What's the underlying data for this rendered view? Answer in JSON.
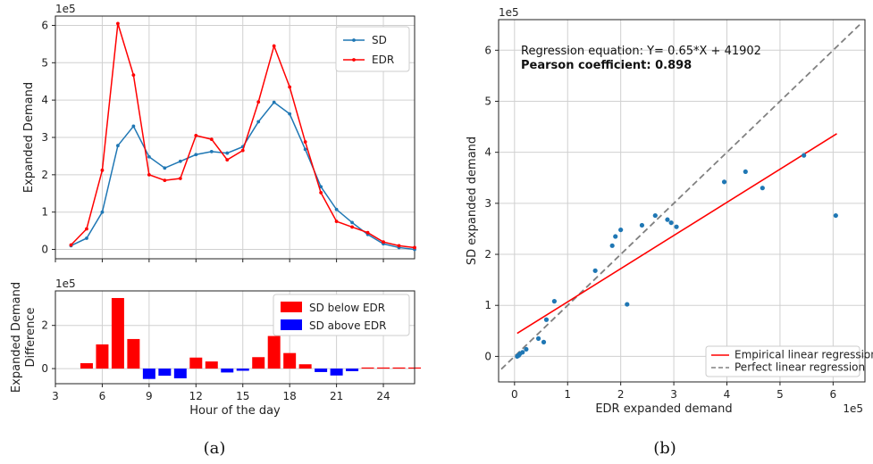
{
  "chart_data": [
    {
      "panel": "a-top",
      "type": "line",
      "ylabel": "Expanded Demand",
      "y_offset_text": "1e5",
      "x": [
        4,
        5,
        6,
        7,
        8,
        9,
        10,
        11,
        12,
        13,
        14,
        15,
        16,
        17,
        18,
        19,
        20,
        21,
        22,
        23,
        24,
        25,
        26
      ],
      "xlim": [
        3,
        26
      ],
      "ylim": [
        -0.25,
        6.25
      ],
      "yticks": [
        0,
        1,
        2,
        3,
        4,
        5,
        6
      ],
      "series": [
        {
          "name": "SD",
          "color": "#1f77b4",
          "values": [
            0.1,
            0.3,
            1.0,
            2.78,
            3.3,
            2.48,
            2.18,
            2.36,
            2.54,
            2.62,
            2.58,
            2.75,
            3.42,
            3.94,
            3.63,
            2.68,
            1.68,
            1.07,
            0.72,
            0.4,
            0.15,
            0.05,
            0.0
          ]
        },
        {
          "name": "EDR",
          "color": "#ff0000",
          "values": [
            0.12,
            0.55,
            2.12,
            6.05,
            4.67,
            2.0,
            1.85,
            1.9,
            3.05,
            2.95,
            2.4,
            2.65,
            3.95,
            5.45,
            4.35,
            2.88,
            1.52,
            0.75,
            0.6,
            0.45,
            0.2,
            0.1,
            0.05
          ]
        }
      ],
      "legend": "upper-right",
      "grid": true
    },
    {
      "panel": "a-bottom",
      "type": "bar",
      "ylabel_lines": [
        "Expanded Demand",
        "Difference"
      ],
      "xlabel": "Hour of the day",
      "y_offset_text": "1e5",
      "x": [
        5,
        6,
        7,
        8,
        9,
        10,
        11,
        12,
        13,
        14,
        15,
        16,
        17,
        18,
        19,
        20,
        21,
        22,
        23,
        24,
        25,
        26
      ],
      "xlim": [
        3,
        26
      ],
      "xticks": [
        3,
        6,
        9,
        12,
        15,
        18,
        21,
        24
      ],
      "ylim": [
        -0.7,
        3.6
      ],
      "yticks": [
        0,
        2
      ],
      "values": [
        0.25,
        1.12,
        3.27,
        1.37,
        -0.48,
        -0.33,
        -0.45,
        0.51,
        0.33,
        -0.18,
        -0.1,
        0.53,
        1.51,
        0.72,
        0.2,
        -0.16,
        -0.32,
        -0.12,
        0.05,
        0.05,
        0.05,
        0.05
      ],
      "legend_entries": [
        {
          "name": "SD below EDR",
          "color": "#ff0000"
        },
        {
          "name": "SD above EDR",
          "color": "#0000ff"
        }
      ],
      "legend": "upper-right",
      "grid": true
    },
    {
      "panel": "b",
      "type": "scatter",
      "xlabel": "EDR expanded demand",
      "ylabel": "SD expanded demand",
      "x_offset_text": "1e5",
      "y_offset_text": "1e5",
      "xlim": [
        -0.3,
        6.6
      ],
      "ylim": [
        -0.5,
        6.6
      ],
      "xticks": [
        0,
        1,
        2,
        3,
        4,
        5,
        6
      ],
      "yticks": [
        0,
        1,
        2,
        3,
        4,
        5,
        6
      ],
      "points": [
        [
          0.05,
          0.0
        ],
        [
          0.08,
          0.02
        ],
        [
          0.1,
          0.05
        ],
        [
          0.15,
          0.08
        ],
        [
          0.22,
          0.14
        ],
        [
          0.45,
          0.35
        ],
        [
          0.55,
          0.28
        ],
        [
          0.6,
          0.72
        ],
        [
          0.75,
          1.08
        ],
        [
          1.52,
          1.68
        ],
        [
          1.84,
          2.17
        ],
        [
          1.9,
          2.35
        ],
        [
          2.0,
          2.48
        ],
        [
          2.12,
          1.02
        ],
        [
          2.4,
          2.57
        ],
        [
          2.65,
          2.76
        ],
        [
          2.88,
          2.68
        ],
        [
          2.95,
          2.62
        ],
        [
          3.05,
          2.54
        ],
        [
          3.95,
          3.42
        ],
        [
          4.35,
          3.62
        ],
        [
          4.67,
          3.3
        ],
        [
          5.45,
          3.94
        ],
        [
          6.05,
          2.76
        ]
      ],
      "point_color": "#1f77b4",
      "regression_line": {
        "slope": 0.65,
        "intercept": 0.41902,
        "x_range": [
          0.05,
          6.07
        ],
        "color": "#ff0000"
      },
      "perfect_line": {
        "x_range": [
          -0.25,
          6.5
        ],
        "color": "#808080"
      },
      "annotation_equation": "Regression equation: Y= 0.65*X + 41902",
      "annotation_pearson": "Pearson coefficient: 0.898",
      "legend_entries": [
        {
          "name": "Empirical linear regression",
          "color": "#ff0000",
          "dash": false
        },
        {
          "name": "Perfect linear regression",
          "color": "#808080",
          "dash": true
        }
      ],
      "legend": "lower-right",
      "grid": true
    }
  ],
  "captions": {
    "a": "(a)",
    "b": "(b)"
  }
}
